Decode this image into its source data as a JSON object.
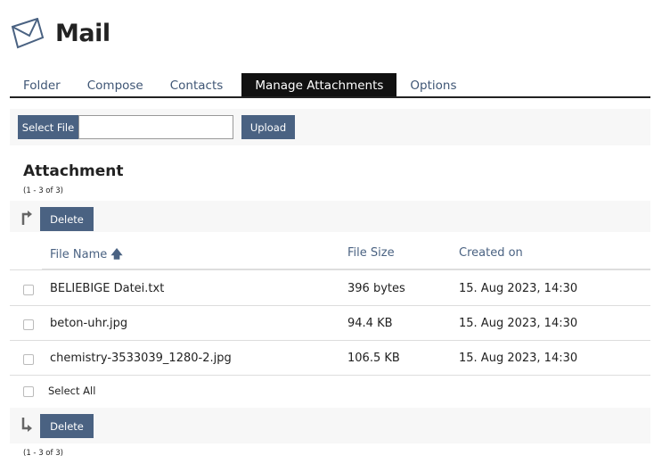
{
  "header": {
    "title": "Mail",
    "icon": "envelope-icon"
  },
  "tabs": [
    {
      "label": "Folder"
    },
    {
      "label": "Compose"
    },
    {
      "label": "Contacts"
    },
    {
      "label": "Manage Attachments",
      "active": true
    },
    {
      "label": "Options"
    }
  ],
  "upload": {
    "select_label": "Select File",
    "file_value": "",
    "upload_label": "Upload"
  },
  "section": {
    "title": "Attachment",
    "count_top": "(1 - 3 of 3)",
    "count_bottom": "(1 - 3 of 3)",
    "delete_label": "Delete"
  },
  "table": {
    "columns": [
      {
        "label": "File Name",
        "sort": "ascending"
      },
      {
        "label": "File Size"
      },
      {
        "label": "Created on"
      }
    ],
    "rows": [
      {
        "name": "BELIEBIGE Datei.txt",
        "size": "396 bytes",
        "created": "15. Aug 2023, 14:30"
      },
      {
        "name": "beton-uhr.jpg",
        "size": "94.4 KB",
        "created": "15. Aug 2023, 14:30"
      },
      {
        "name": "chemistry-3533039_1280-2.jpg",
        "size": "106.5 KB",
        "created": "15. Aug 2023, 14:30"
      }
    ],
    "select_all": "Select All"
  },
  "colors": {
    "accent": "#4a6282",
    "active_tab": "#111111"
  }
}
